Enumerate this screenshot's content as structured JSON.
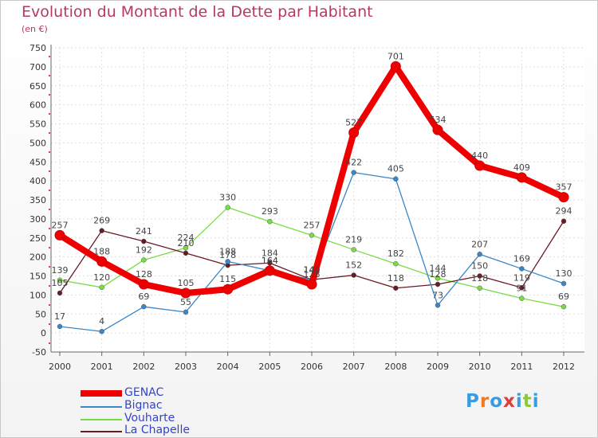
{
  "chart_data": {
    "type": "line",
    "title": "Evolution du Montant de la Dette par Habitant",
    "subtitle": "(en €)",
    "x": [
      "2000",
      "2001",
      "2002",
      "2003",
      "2004",
      "2005",
      "2006",
      "2007",
      "2008",
      "2009",
      "2010",
      "2011",
      "2012"
    ],
    "ylim": [
      -50,
      750
    ],
    "yticks": [
      -50,
      0,
      50,
      100,
      150,
      200,
      250,
      300,
      350,
      400,
      450,
      500,
      550,
      600,
      650,
      700,
      750
    ],
    "grid": true,
    "legend_position": "bottom-left",
    "series": [
      {
        "name": "GENAC",
        "color": "#ee0000",
        "values": [
          257,
          188,
          128,
          105,
          115,
          164,
          128,
          527,
          701,
          534,
          440,
          409,
          357
        ]
      },
      {
        "name": "Bignac",
        "color": "#3a86c8",
        "values": [
          17,
          4,
          69,
          55,
          188,
          164,
          140,
          422,
          405,
          73,
          207,
          169,
          130
        ]
      },
      {
        "name": "Vouharte",
        "color": "#77dd44",
        "values": [
          139,
          120,
          192,
          224,
          330,
          293,
          257,
          219,
          182,
          144,
          118,
          91,
          69
        ]
      },
      {
        "name": "La Chapelle",
        "color": "#6a1a24",
        "values": [
          105,
          269,
          241,
          210,
          178,
          184,
          140,
          152,
          118,
          128,
          150,
          119,
          294
        ]
      }
    ]
  },
  "brand": {
    "letters": [
      "P",
      "r",
      "o",
      "x",
      "i",
      "t",
      "i"
    ],
    "colors": [
      "#3b9be0",
      "#f07820",
      "#3b9be0",
      "#e03c3c",
      "#3b9be0",
      "#8bc83c",
      "#3b9be0"
    ]
  }
}
